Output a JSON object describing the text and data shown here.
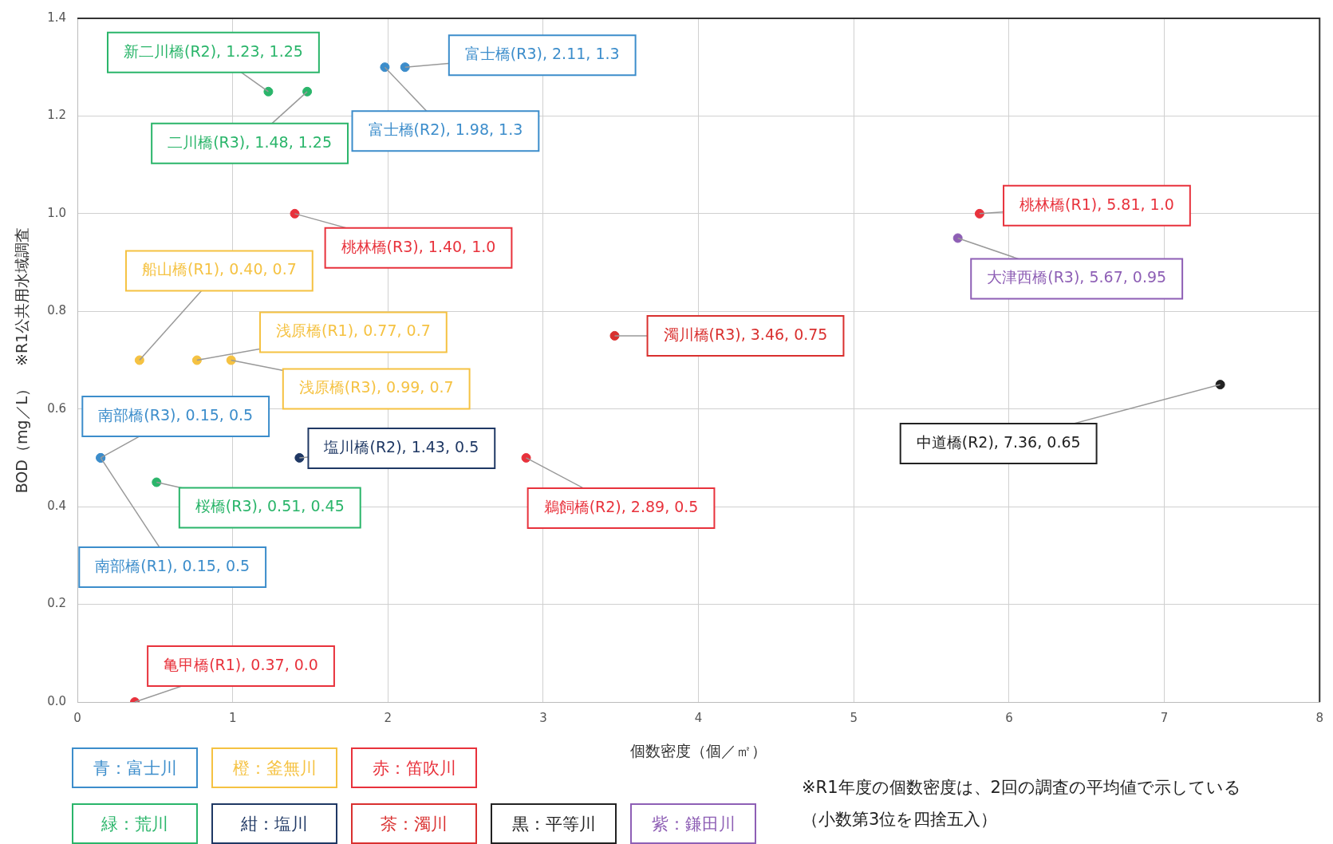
{
  "chart_data": {
    "type": "scatter",
    "xlabel": "個数密度（個／㎡）",
    "ylabel": "BOD（mg／L）　※R1公共用水域調査",
    "xlim": [
      0,
      8
    ],
    "xticks": [
      0,
      1,
      2,
      3,
      4,
      5,
      6,
      7,
      8
    ],
    "ylim": [
      0,
      1.4
    ],
    "yticks": [
      {
        "value": 0,
        "label": "0.0"
      },
      {
        "value": 0.2,
        "label": "0.2"
      },
      {
        "value": 0.4,
        "label": "0.4"
      },
      {
        "value": 0.6,
        "label": "0.6"
      },
      {
        "value": 0.8,
        "label": "0.8"
      },
      {
        "value": 1.0,
        "label": "1.0"
      },
      {
        "value": 1.2,
        "label": "1.2"
      },
      {
        "value": 1.4,
        "label": "1.4"
      }
    ],
    "grid": true,
    "legend": "bottom",
    "marker": "circle",
    "series": [
      {
        "name": "青：富士川",
        "color": "#3c8dcb",
        "x": [
          2.11,
          1.98,
          0.15,
          0.15
        ],
        "values": [
          1.3,
          1.3,
          0.5,
          0.5
        ]
      },
      {
        "name": "橙：釜無川",
        "color": "#f5c242",
        "x": [
          0.4,
          0.77,
          0.99
        ],
        "values": [
          0.7,
          0.7,
          0.7
        ]
      },
      {
        "name": "赤：笛吹川",
        "color": "#e8323c",
        "x": [
          1.4,
          5.81,
          0.37,
          2.89
        ],
        "values": [
          1.0,
          1.0,
          0.0,
          0.5
        ]
      },
      {
        "name": "緑：荒川",
        "color": "#2ab56a",
        "x": [
          1.23,
          1.48,
          0.51
        ],
        "values": [
          1.25,
          1.25,
          0.45
        ]
      },
      {
        "name": "紺：塩川",
        "color": "#1f3864",
        "x": [
          1.43
        ],
        "values": [
          0.5
        ]
      },
      {
        "name": "茶：濁川",
        "color": "#d9302f",
        "x": [
          3.46
        ],
        "values": [
          0.75
        ]
      },
      {
        "name": "黒：平等川",
        "color": "#222222",
        "x": [
          7.36
        ],
        "values": [
          0.65
        ]
      },
      {
        "name": "紫：鎌田川",
        "color": "#8e5fb5",
        "x": [
          5.67
        ],
        "values": [
          0.95
        ]
      }
    ],
    "annotations": [
      {
        "text": "新二川橋(R2), 1.23, 1.25",
        "x": 1.23,
        "y": 1.25
      },
      {
        "text": "二川橋(R3), 1.48, 1.25",
        "x": 1.48,
        "y": 1.25
      },
      {
        "text": "富士橋(R3), 2.11, 1.3",
        "x": 2.11,
        "y": 1.3
      },
      {
        "text": "富士橋(R2), 1.98, 1.3",
        "x": 1.98,
        "y": 1.3
      },
      {
        "text": "桃林橋(R3), 1.40, 1.0",
        "x": 1.4,
        "y": 1.0
      },
      {
        "text": "船山橋(R1), 0.40, 0.7",
        "x": 0.4,
        "y": 0.7
      },
      {
        "text": "浅原橋(R1), 0.77, 0.7",
        "x": 0.77,
        "y": 0.7
      },
      {
        "text": "浅原橋(R3), 0.99, 0.7",
        "x": 0.99,
        "y": 0.7
      },
      {
        "text": "南部橋(R3), 0.15, 0.5",
        "x": 0.15,
        "y": 0.5
      },
      {
        "text": "南部橋(R1), 0.15, 0.5",
        "x": 0.15,
        "y": 0.5
      },
      {
        "text": "塩川橋(R2), 1.43, 0.5",
        "x": 1.43,
        "y": 0.5
      },
      {
        "text": "桜橋(R3), 0.51, 0.45",
        "x": 0.51,
        "y": 0.45
      },
      {
        "text": "鵜飼橋(R2), 2.89, 0.5",
        "x": 2.89,
        "y": 0.5
      },
      {
        "text": "亀甲橋(R1), 0.37, 0.0",
        "x": 0.37,
        "y": 0.0
      },
      {
        "text": "濁川橋(R3), 3.46, 0.75",
        "x": 3.46,
        "y": 0.75
      },
      {
        "text": "桃林橋(R1), 5.81, 1.0",
        "x": 5.81,
        "y": 1.0
      },
      {
        "text": "大津西橋(R3), 5.67, 0.95",
        "x": 5.67,
        "y": 0.95
      },
      {
        "text": "中道橋(R2), 7.36, 0.65",
        "x": 7.36,
        "y": 0.65
      },
      "※R1年度の個数密度は、2回の調査の平均値で示している",
      "（小数第3位を四捨五入）"
    ]
  }
}
